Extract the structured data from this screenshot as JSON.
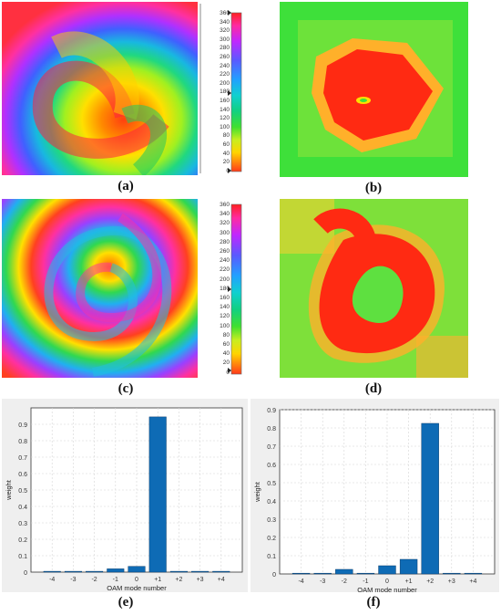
{
  "captions": {
    "a": "(a)",
    "b": "(b)",
    "c": "(c)",
    "d": "(d)",
    "e": "(e)",
    "f": "(f)"
  },
  "colorbar_ticks": [
    "360",
    "340",
    "320",
    "300",
    "280",
    "260",
    "240",
    "220",
    "200",
    "180",
    "160",
    "140",
    "120",
    "100",
    "80",
    "60",
    "40",
    "20",
    "0"
  ],
  "chart_data": [
    {
      "type": "bar",
      "categories": [
        "-4",
        "-3",
        "-2",
        "-1",
        "0",
        "+1",
        "+2",
        "+3",
        "+4"
      ],
      "values": [
        0.005,
        0.005,
        0.005,
        0.02,
        0.035,
        0.945,
        0.005,
        0.005,
        0.005
      ],
      "ylim": [
        0,
        1
      ],
      "yticks": [
        "0",
        "0.1",
        "0.2",
        "0.3",
        "0.4",
        "0.5",
        "0.6",
        "0.7",
        "0.8",
        "0.9"
      ],
      "xlabel": "OAM mode number",
      "ylabel": "weight",
      "grid": true,
      "color": "#0e6bb5"
    },
    {
      "type": "bar",
      "categories": [
        "-4",
        "-3",
        "-2",
        "-1",
        "0",
        "+1",
        "+2",
        "+3",
        "+4"
      ],
      "values": [
        0.004,
        0.004,
        0.025,
        0.004,
        0.045,
        0.08,
        0.825,
        0.004,
        0.004
      ],
      "ylim": [
        0,
        0.9
      ],
      "yticks": [
        "0",
        "0.1",
        "0.2",
        "0.3",
        "0.4",
        "0.5",
        "0.6",
        "0.7",
        "0.8",
        "0.9"
      ],
      "xlabel": "OAM mode number",
      "ylabel": "weight",
      "grid": true,
      "color": "#0e6bb5"
    }
  ]
}
